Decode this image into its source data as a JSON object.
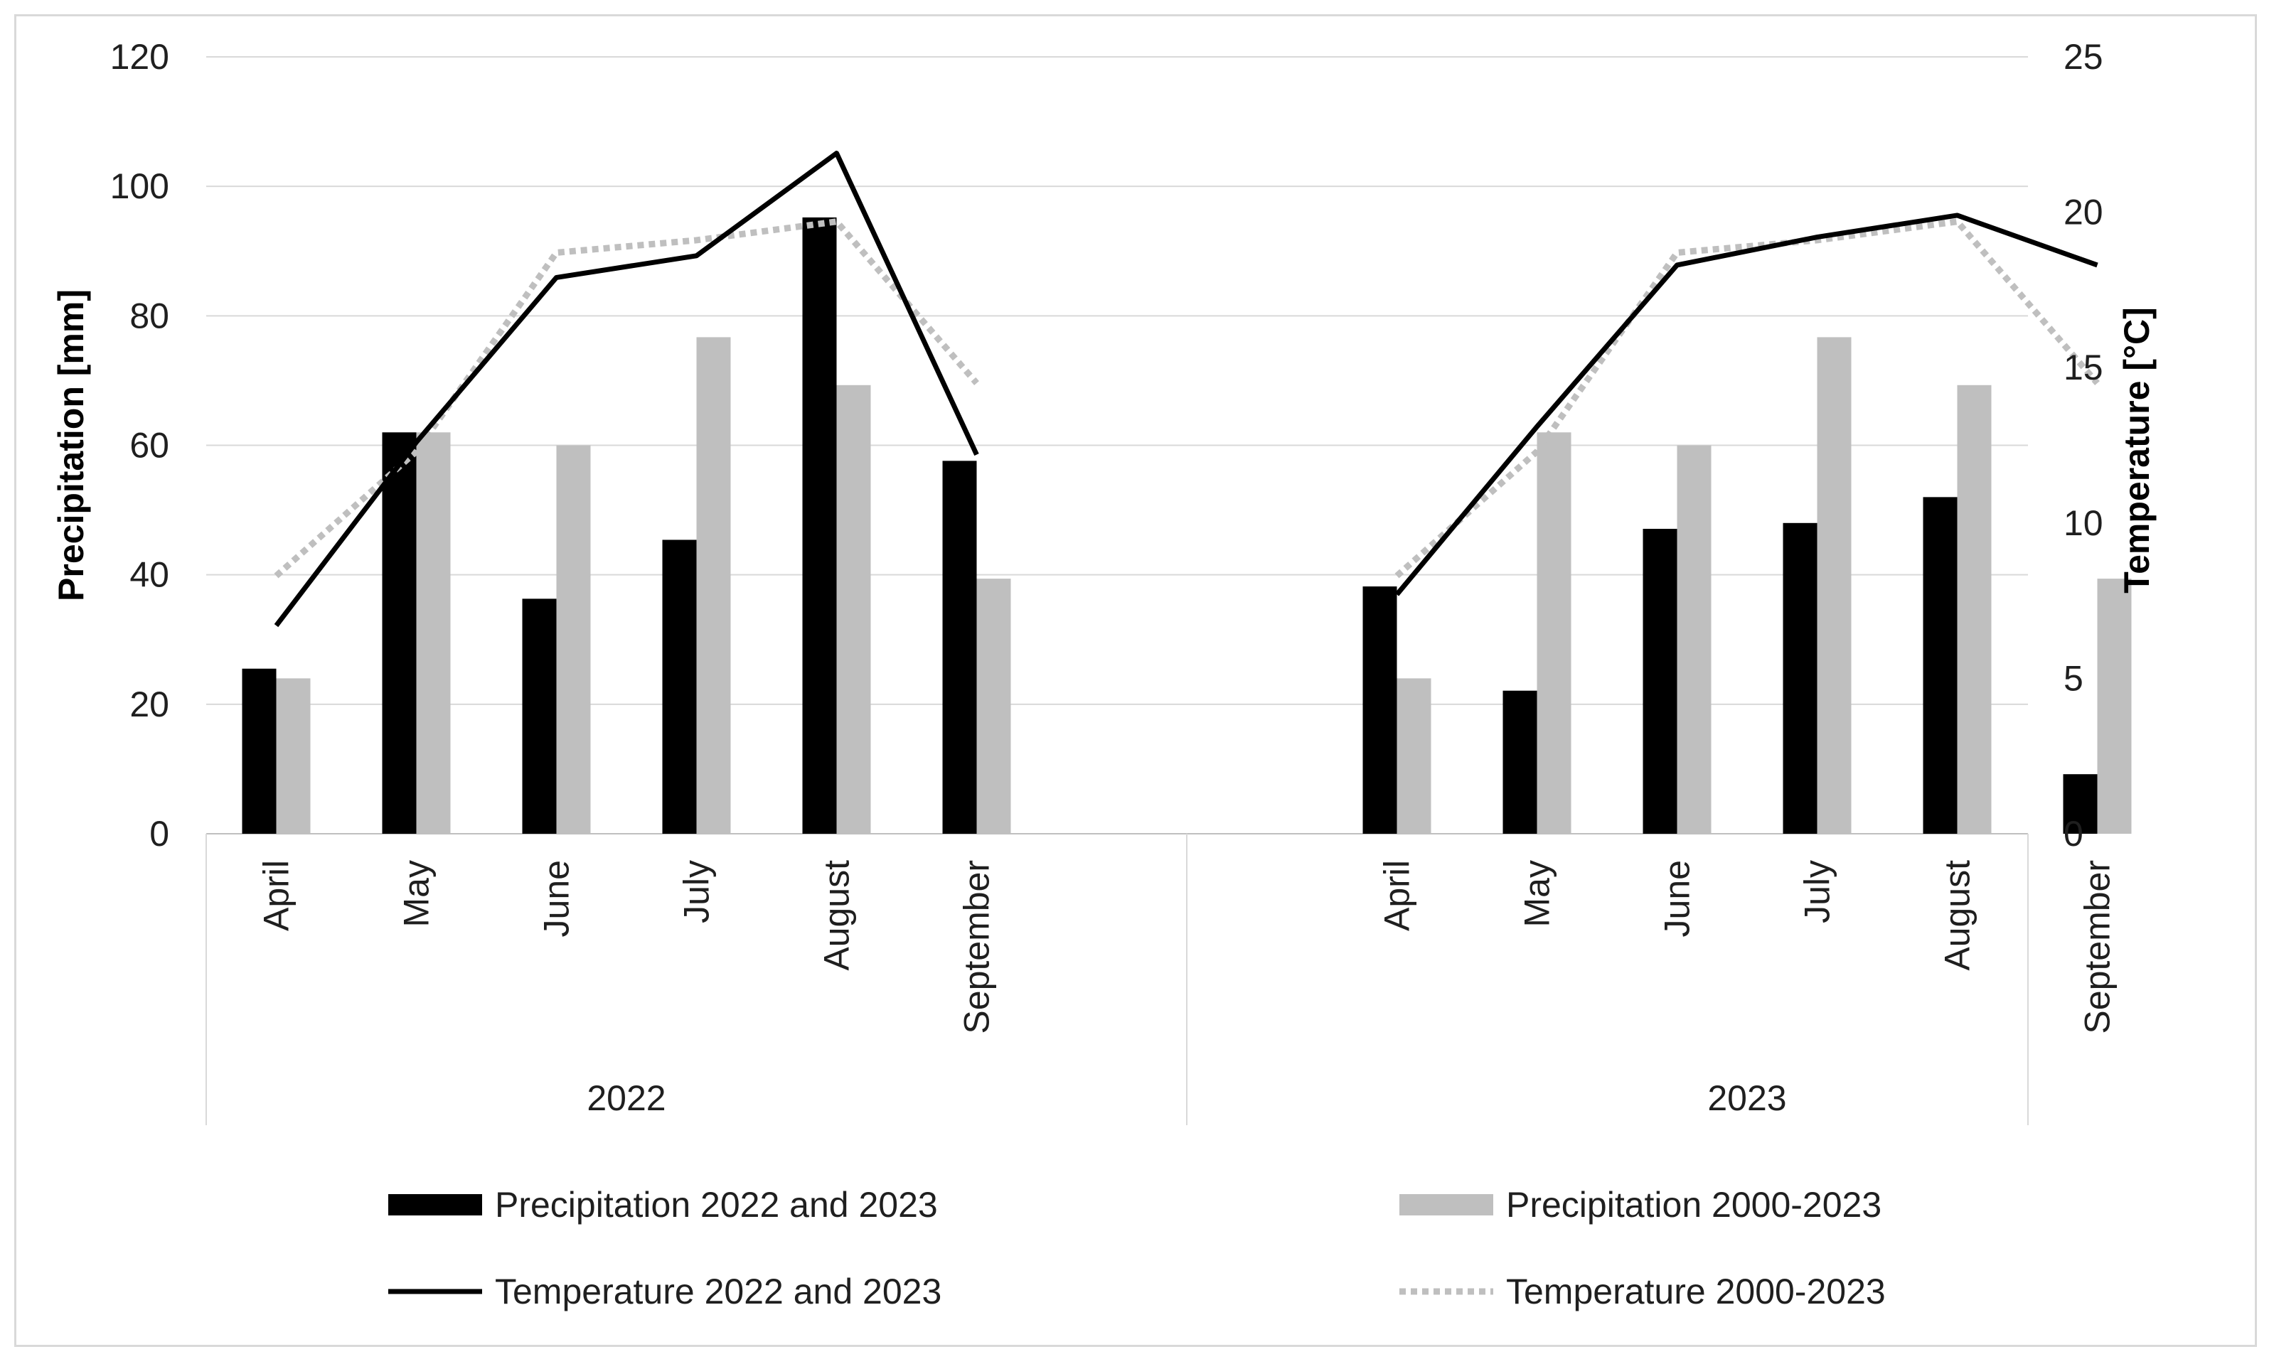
{
  "chart_data": {
    "type": "bar",
    "groups": [
      {
        "label": "2022",
        "categories": [
          "April",
          "May",
          "June",
          "July",
          "August",
          "September"
        ]
      },
      {
        "label": "2023",
        "categories": [
          "April",
          "May",
          "June",
          "July",
          "August",
          "September"
        ]
      }
    ],
    "series": [
      {
        "name": "Precipitation 2022 and 2023",
        "type": "bar",
        "axis": "left",
        "color": "#000000",
        "values": [
          [
            25.5,
            62,
            36.3,
            45.4,
            95.2,
            57.6
          ],
          [
            38.2,
            22.1,
            47.1,
            48,
            52,
            9.2
          ]
        ]
      },
      {
        "name": "Precipitation 2000-2023",
        "type": "bar",
        "axis": "left",
        "color": "#bfbfbf",
        "values": [
          [
            24,
            62,
            60,
            76.7,
            69.3,
            39.4
          ],
          [
            24,
            62,
            60,
            76.7,
            69.3,
            39.4
          ]
        ]
      },
      {
        "name": "Temperature 2022 and 2023",
        "type": "line",
        "axis": "right",
        "color": "#000000",
        "dash": "solid",
        "values": [
          [
            6.7,
            12.6,
            17.9,
            18.6,
            21.9,
            12.2
          ],
          [
            7.7,
            13.1,
            18.3,
            19.2,
            19.9,
            18.3
          ]
        ]
      },
      {
        "name": "Temperature 2000-2023",
        "type": "line",
        "axis": "right",
        "color": "#bfbfbf",
        "dash": "dotted",
        "values": [
          [
            8.3,
            12.3,
            18.7,
            19.1,
            19.7,
            14.5
          ],
          [
            8.3,
            12.3,
            18.7,
            19.1,
            19.7,
            14.5
          ]
        ]
      }
    ],
    "ylabel": "Precipitation [mm]",
    "y2label": "Temperature [°C]",
    "ylim": [
      0,
      120
    ],
    "y2lim": [
      0,
      25
    ],
    "yticks": [
      "0",
      "20",
      "40",
      "60",
      "80",
      "100",
      "120"
    ],
    "y2ticks": [
      "0",
      "5",
      "10",
      "15",
      "20",
      "25"
    ],
    "grid": true,
    "legend_position": "bottom"
  }
}
